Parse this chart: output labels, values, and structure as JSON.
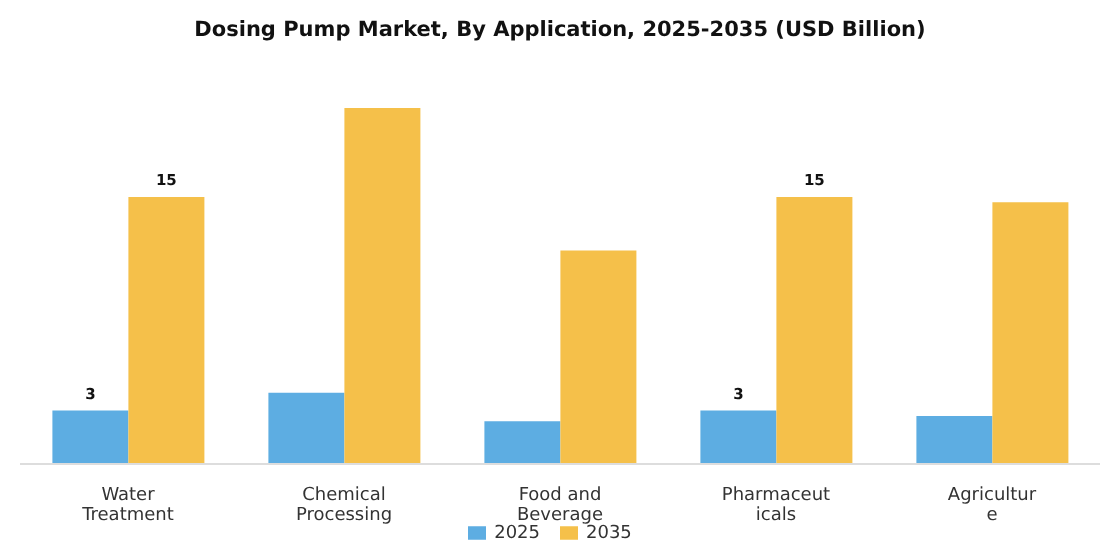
{
  "chart_data": {
    "type": "bar",
    "title": "Dosing Pump Market, By Application, 2025-2035 (USD Billion)",
    "categories": [
      "Water Treatment",
      "Chemical Processing",
      "Food and Beverage",
      "Pharmaceuticals",
      "Agriculture"
    ],
    "series": [
      {
        "name": "2025",
        "color": "#5dade2",
        "values": [
          3,
          4.0,
          2.4,
          3,
          2.7
        ],
        "value_labels": [
          "3",
          null,
          null,
          "3",
          null
        ]
      },
      {
        "name": "2035",
        "color": "#f5c04a",
        "values": [
          15,
          20.0,
          12.0,
          15,
          14.7
        ],
        "value_labels": [
          "15",
          null,
          null,
          "15",
          null
        ]
      }
    ],
    "legend": "bottom",
    "grid": false
  }
}
